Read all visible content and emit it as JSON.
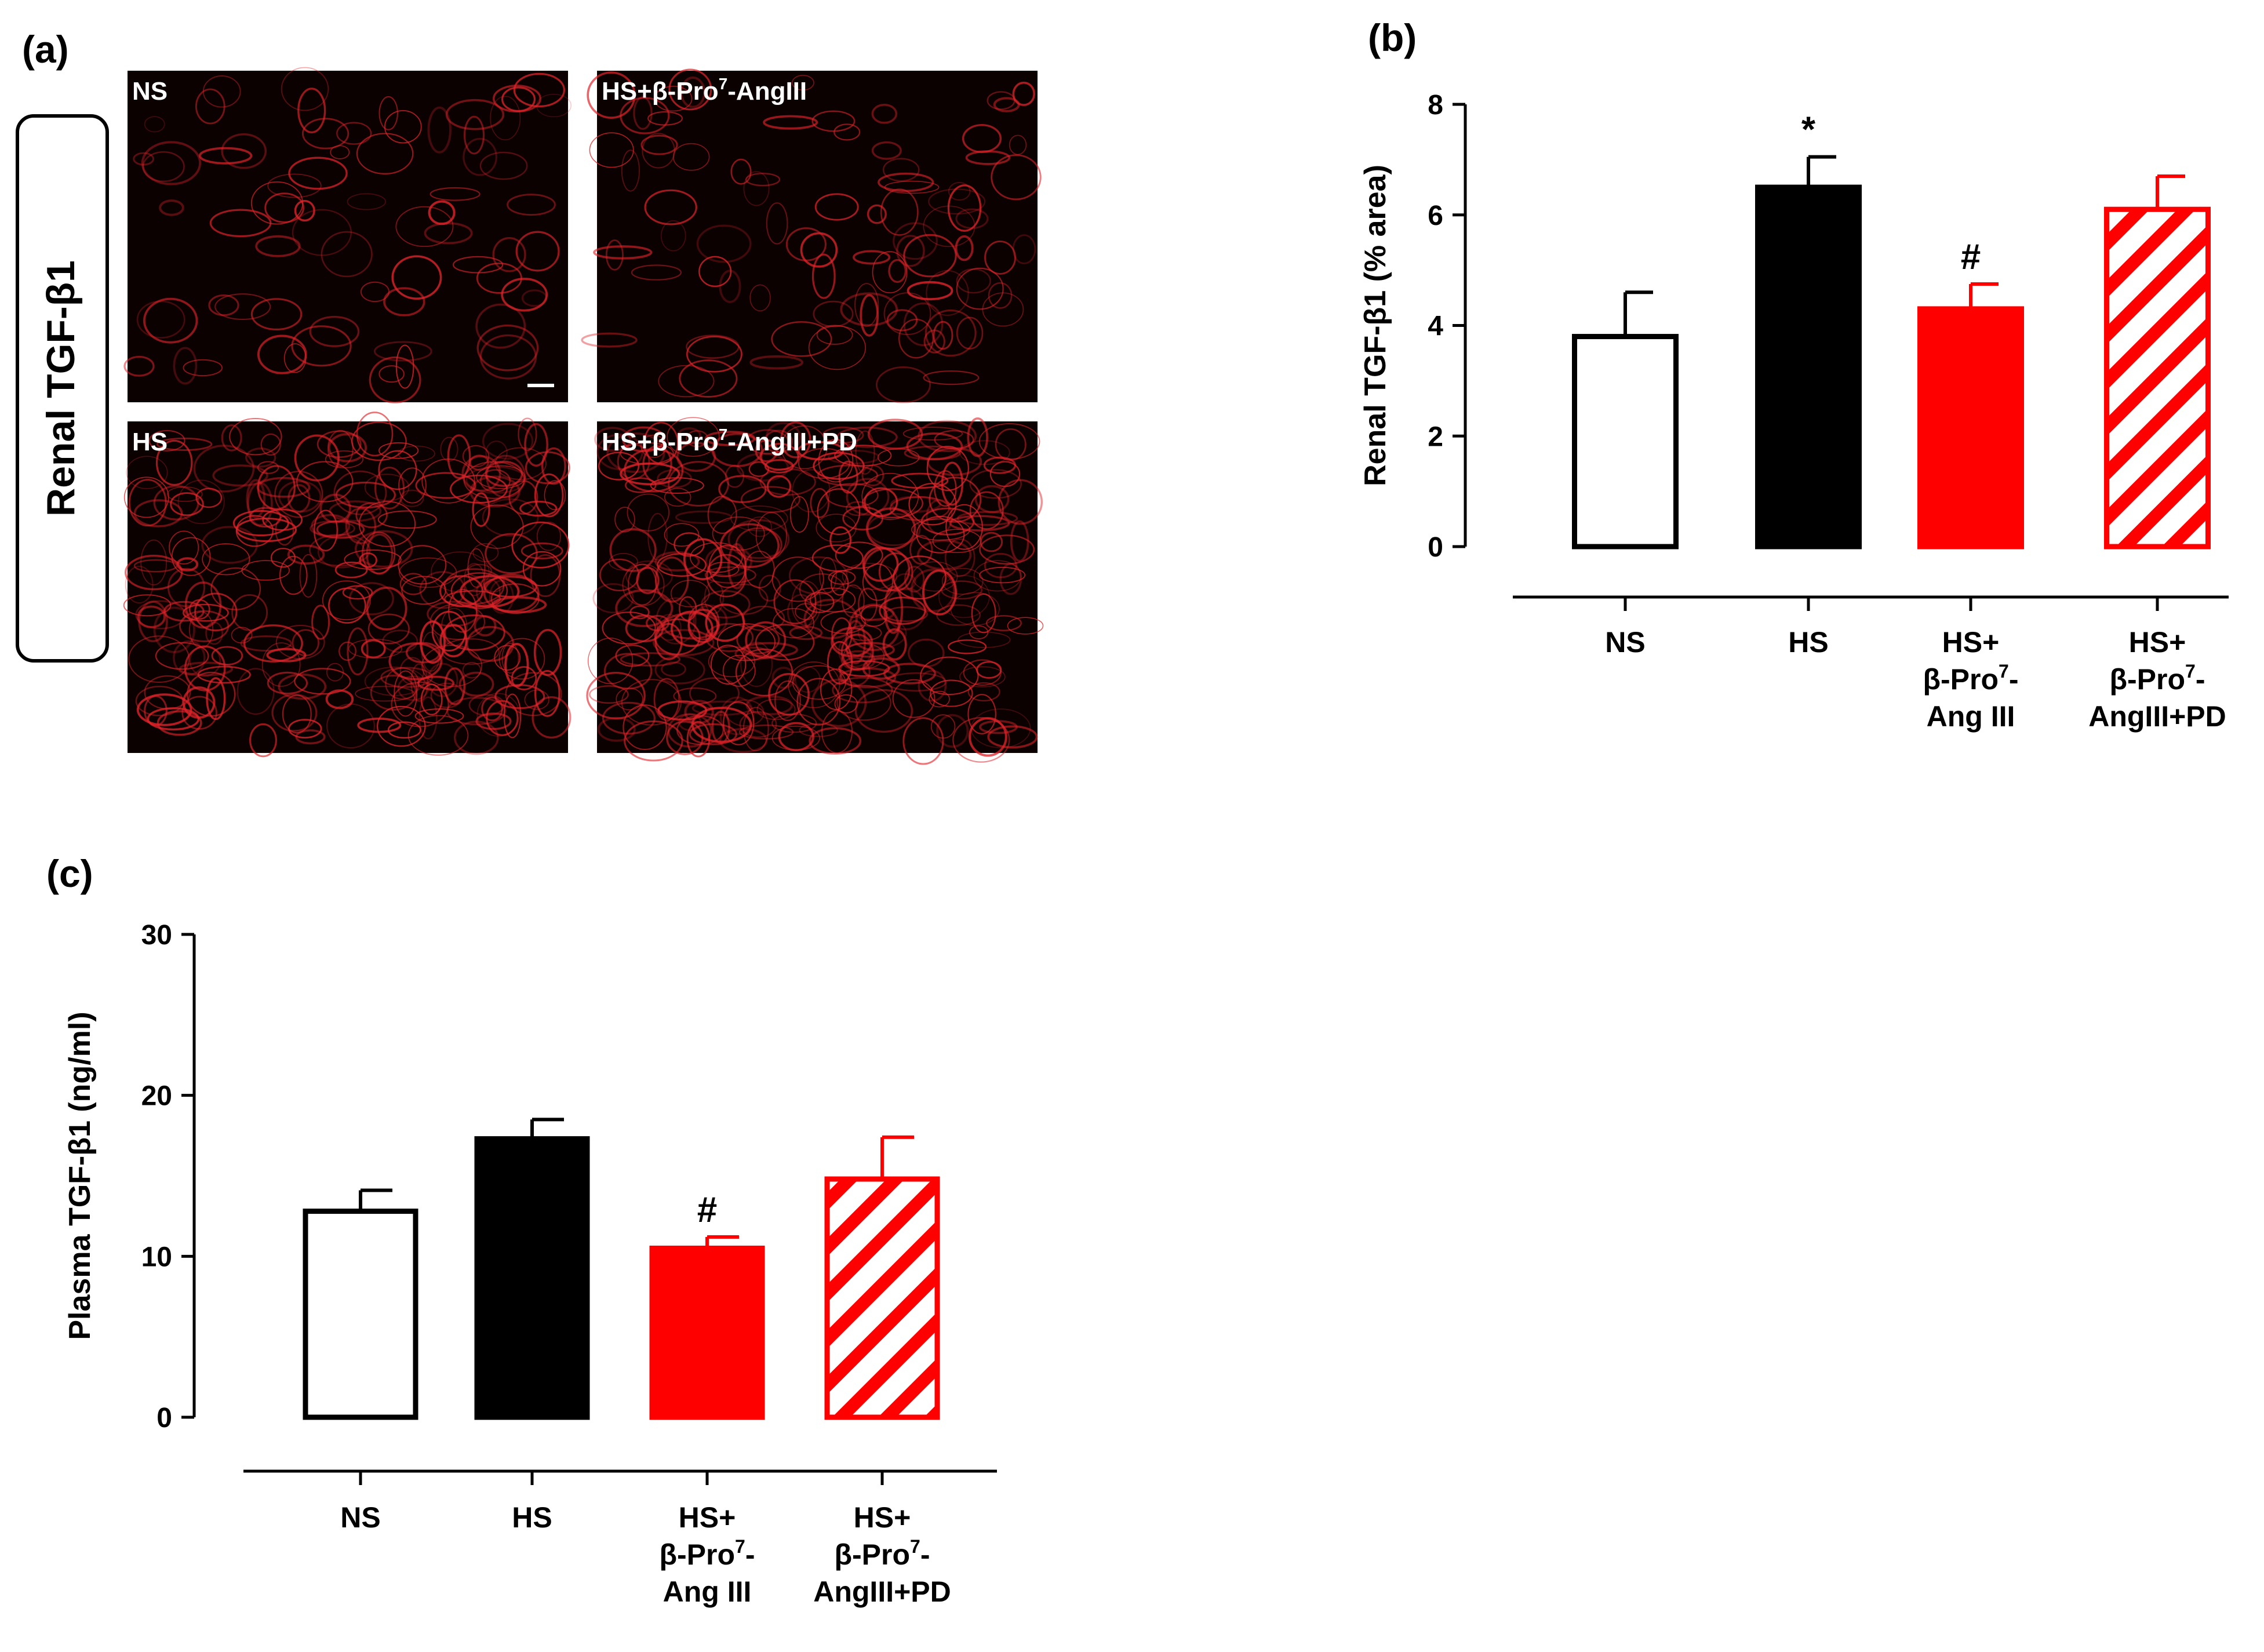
{
  "panel_a": {
    "label": "(a)",
    "row_label": "Renal TGF-β1",
    "images": [
      {
        "key": "ns",
        "title": "NS",
        "title_sup": "",
        "title_tail": ""
      },
      {
        "key": "hsb",
        "title": "HS+β-Pro",
        "title_sup": "7",
        "title_tail": "-AngIII"
      },
      {
        "key": "hs",
        "title": "HS",
        "title_sup": "",
        "title_tail": ""
      },
      {
        "key": "hsbpd",
        "title": "HS+β-Pro",
        "title_sup": "7",
        "title_tail": "-AngIII+PD"
      }
    ]
  },
  "colors": {
    "black": "#000000",
    "red": "#ff0000",
    "micrograph_bg": "#0b0101",
    "stain": "#e0242a"
  },
  "chart_data": [
    {
      "id": "b",
      "panel_label": "(b)",
      "type": "bar",
      "ylabel": "Renal TGF-β1 (% area)",
      "ylim": [
        0,
        8
      ],
      "yticks": [
        0,
        2,
        4,
        6,
        8
      ],
      "categories": [
        {
          "lines": [
            "NS"
          ]
        },
        {
          "lines": [
            "HS"
          ]
        },
        {
          "lines": [
            "HS+",
            "β-Pro|7|-",
            "Ang III"
          ]
        },
        {
          "lines": [
            "HS+",
            "β-Pro|7|-",
            "AngIII+PD"
          ]
        }
      ],
      "values": [
        3.8,
        6.5,
        4.3,
        6.1
      ],
      "errors": [
        0.8,
        0.55,
        0.45,
        0.6
      ],
      "fills": [
        "white",
        "black",
        "red",
        "hatch"
      ],
      "annotations": [
        "",
        "*",
        "#",
        ""
      ]
    },
    {
      "id": "c",
      "panel_label": "(c)",
      "type": "bar",
      "ylabel": "Plasma TGF-β1 (ng/ml)",
      "ylim": [
        0,
        30
      ],
      "yticks": [
        0,
        10,
        20,
        30
      ],
      "categories": [
        {
          "lines": [
            "NS"
          ]
        },
        {
          "lines": [
            "HS"
          ]
        },
        {
          "lines": [
            "HS+",
            "β-Pro|7|-",
            "Ang III"
          ]
        },
        {
          "lines": [
            "HS+",
            "β-Pro|7|-",
            "AngIII+PD"
          ]
        }
      ],
      "values": [
        12.8,
        17.3,
        10.5,
        14.8
      ],
      "errors": [
        1.3,
        1.2,
        0.7,
        2.6
      ],
      "fills": [
        "white",
        "black",
        "red",
        "hatch"
      ],
      "annotations": [
        "",
        "",
        "#",
        ""
      ]
    }
  ]
}
